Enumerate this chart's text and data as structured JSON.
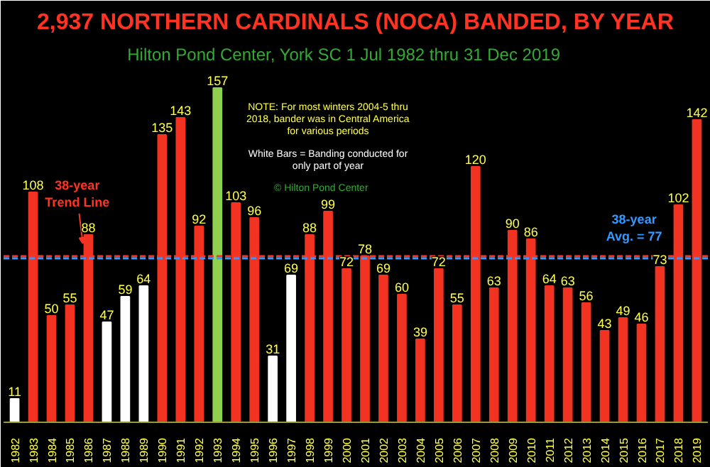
{
  "chart_data": {
    "type": "bar",
    "title": "2,937 NORTHERN CARDINALS (NOCA) BANDED, BY YEAR",
    "subtitle": "Hilton Pond Center, York SC      1 Jul 1982 thru 31 Dec 2019",
    "categories": [
      "1982",
      "1983",
      "1984",
      "1985",
      "1986",
      "1987",
      "1988",
      "1989",
      "1990",
      "1991",
      "1992",
      "1993",
      "1994",
      "1995",
      "1996",
      "1997",
      "1998",
      "1999",
      "2000",
      "2001",
      "2002",
      "2003",
      "2004",
      "2005",
      "2006",
      "2007",
      "2008",
      "2009",
      "2010",
      "2011",
      "2012",
      "2013",
      "2014",
      "2015",
      "2016",
      "2017",
      "2018",
      "2019"
    ],
    "values": [
      11,
      108,
      50,
      55,
      88,
      47,
      59,
      64,
      135,
      143,
      92,
      157,
      103,
      96,
      31,
      69,
      88,
      99,
      72,
      78,
      69,
      60,
      39,
      72,
      55,
      120,
      63,
      90,
      86,
      64,
      63,
      56,
      43,
      49,
      46,
      73,
      102,
      142
    ],
    "colors": [
      "#ffffff",
      "#f23322",
      "#f23322",
      "#f23322",
      "#f23322",
      "#ffffff",
      "#ffffff",
      "#ffffff",
      "#f23322",
      "#f23322",
      "#f23322",
      "#8fd14f",
      "#f23322",
      "#f23322",
      "#ffffff",
      "#ffffff",
      "#f23322",
      "#f23322",
      "#f23322",
      "#f23322",
      "#f23322",
      "#f23322",
      "#f23322",
      "#f23322",
      "#f23322",
      "#f23322",
      "#f23322",
      "#f23322",
      "#f23322",
      "#f23322",
      "#f23322",
      "#f23322",
      "#f23322",
      "#f23322",
      "#f23322",
      "#f23322",
      "#f23322",
      "#f23322"
    ],
    "data_labels": true,
    "ref_lines": [
      {
        "axis": "y",
        "value": 78,
        "label": "38-year\nTrend Line",
        "color": "#ff3322",
        "line_style": "dashed"
      },
      {
        "axis": "y",
        "value": 77,
        "label": "38-year\nAvg. = 77",
        "color": "#3399ff",
        "line_style": "dashed"
      }
    ],
    "annotations": [
      "NOTE: For most winters 2004-5 thru\n2018, bander was in Central America\nfor various periods",
      "White Bars = Banding conducted for\nonly part of year",
      "© Hilton Pond Center"
    ],
    "grid": false
  }
}
